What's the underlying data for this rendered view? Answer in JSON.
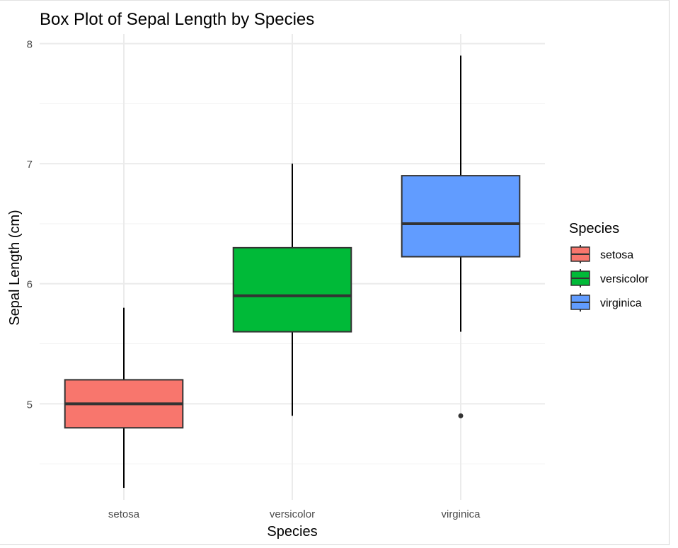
{
  "chart_data": {
    "type": "boxplot",
    "title": "Box Plot of Sepal Length by Species",
    "xlabel": "Species",
    "ylabel": "Sepal Length (cm)",
    "ylim": [
      4.2,
      8.08
    ],
    "yticks": [
      5,
      6,
      7,
      8
    ],
    "ytick_labels": [
      "5",
      "6",
      "7",
      "8"
    ],
    "grid": true,
    "legend": {
      "title": "Species",
      "placement": "right"
    },
    "series": [
      {
        "name": "setosa",
        "color": "#F8766D",
        "min": 4.3,
        "q1": 4.8,
        "median": 5.0,
        "q3": 5.2,
        "max": 5.8,
        "outliers": []
      },
      {
        "name": "versicolor",
        "color": "#00BA38",
        "min": 4.9,
        "q1": 5.6,
        "median": 5.9,
        "q3": 6.3,
        "max": 7.0,
        "outliers": []
      },
      {
        "name": "virginica",
        "color": "#619CFF",
        "min": 5.6,
        "q1": 6.225,
        "median": 6.5,
        "q3": 6.9,
        "max": 7.9,
        "outliers": [
          4.9
        ]
      }
    ]
  }
}
